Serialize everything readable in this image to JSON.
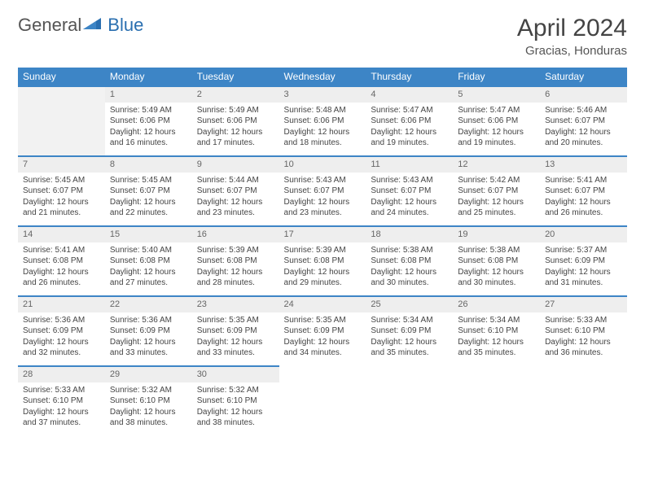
{
  "brand": {
    "part1": "General",
    "part2": "Blue"
  },
  "title": "April 2024",
  "location": "Gracias, Honduras",
  "header_color": "#3d85c6",
  "daynum_bg": "#eeeeee",
  "days_of_week": [
    "Sunday",
    "Monday",
    "Tuesday",
    "Wednesday",
    "Thursday",
    "Friday",
    "Saturday"
  ],
  "weeks": [
    [
      null,
      {
        "n": "1",
        "sr": "5:49 AM",
        "ss": "6:06 PM",
        "dl": "12 hours and 16 minutes."
      },
      {
        "n": "2",
        "sr": "5:49 AM",
        "ss": "6:06 PM",
        "dl": "12 hours and 17 minutes."
      },
      {
        "n": "3",
        "sr": "5:48 AM",
        "ss": "6:06 PM",
        "dl": "12 hours and 18 minutes."
      },
      {
        "n": "4",
        "sr": "5:47 AM",
        "ss": "6:06 PM",
        "dl": "12 hours and 19 minutes."
      },
      {
        "n": "5",
        "sr": "5:47 AM",
        "ss": "6:06 PM",
        "dl": "12 hours and 19 minutes."
      },
      {
        "n": "6",
        "sr": "5:46 AM",
        "ss": "6:07 PM",
        "dl": "12 hours and 20 minutes."
      }
    ],
    [
      {
        "n": "7",
        "sr": "5:45 AM",
        "ss": "6:07 PM",
        "dl": "12 hours and 21 minutes."
      },
      {
        "n": "8",
        "sr": "5:45 AM",
        "ss": "6:07 PM",
        "dl": "12 hours and 22 minutes."
      },
      {
        "n": "9",
        "sr": "5:44 AM",
        "ss": "6:07 PM",
        "dl": "12 hours and 23 minutes."
      },
      {
        "n": "10",
        "sr": "5:43 AM",
        "ss": "6:07 PM",
        "dl": "12 hours and 23 minutes."
      },
      {
        "n": "11",
        "sr": "5:43 AM",
        "ss": "6:07 PM",
        "dl": "12 hours and 24 minutes."
      },
      {
        "n": "12",
        "sr": "5:42 AM",
        "ss": "6:07 PM",
        "dl": "12 hours and 25 minutes."
      },
      {
        "n": "13",
        "sr": "5:41 AM",
        "ss": "6:07 PM",
        "dl": "12 hours and 26 minutes."
      }
    ],
    [
      {
        "n": "14",
        "sr": "5:41 AM",
        "ss": "6:08 PM",
        "dl": "12 hours and 26 minutes."
      },
      {
        "n": "15",
        "sr": "5:40 AM",
        "ss": "6:08 PM",
        "dl": "12 hours and 27 minutes."
      },
      {
        "n": "16",
        "sr": "5:39 AM",
        "ss": "6:08 PM",
        "dl": "12 hours and 28 minutes."
      },
      {
        "n": "17",
        "sr": "5:39 AM",
        "ss": "6:08 PM",
        "dl": "12 hours and 29 minutes."
      },
      {
        "n": "18",
        "sr": "5:38 AM",
        "ss": "6:08 PM",
        "dl": "12 hours and 30 minutes."
      },
      {
        "n": "19",
        "sr": "5:38 AM",
        "ss": "6:08 PM",
        "dl": "12 hours and 30 minutes."
      },
      {
        "n": "20",
        "sr": "5:37 AM",
        "ss": "6:09 PM",
        "dl": "12 hours and 31 minutes."
      }
    ],
    [
      {
        "n": "21",
        "sr": "5:36 AM",
        "ss": "6:09 PM",
        "dl": "12 hours and 32 minutes."
      },
      {
        "n": "22",
        "sr": "5:36 AM",
        "ss": "6:09 PM",
        "dl": "12 hours and 33 minutes."
      },
      {
        "n": "23",
        "sr": "5:35 AM",
        "ss": "6:09 PM",
        "dl": "12 hours and 33 minutes."
      },
      {
        "n": "24",
        "sr": "5:35 AM",
        "ss": "6:09 PM",
        "dl": "12 hours and 34 minutes."
      },
      {
        "n": "25",
        "sr": "5:34 AM",
        "ss": "6:09 PM",
        "dl": "12 hours and 35 minutes."
      },
      {
        "n": "26",
        "sr": "5:34 AM",
        "ss": "6:10 PM",
        "dl": "12 hours and 35 minutes."
      },
      {
        "n": "27",
        "sr": "5:33 AM",
        "ss": "6:10 PM",
        "dl": "12 hours and 36 minutes."
      }
    ],
    [
      {
        "n": "28",
        "sr": "5:33 AM",
        "ss": "6:10 PM",
        "dl": "12 hours and 37 minutes."
      },
      {
        "n": "29",
        "sr": "5:32 AM",
        "ss": "6:10 PM",
        "dl": "12 hours and 38 minutes."
      },
      {
        "n": "30",
        "sr": "5:32 AM",
        "ss": "6:10 PM",
        "dl": "12 hours and 38 minutes."
      },
      null,
      null,
      null,
      null
    ]
  ],
  "labels": {
    "sunrise": "Sunrise:",
    "sunset": "Sunset:",
    "daylight": "Daylight:"
  }
}
